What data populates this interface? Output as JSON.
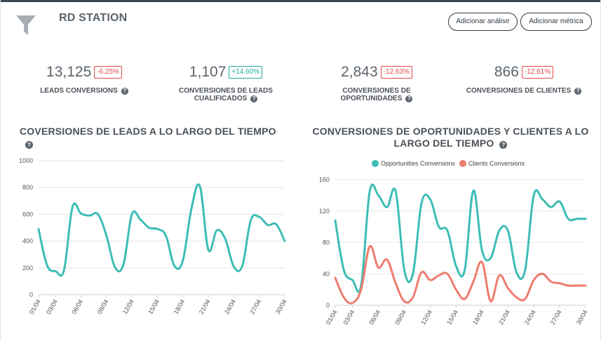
{
  "header": {
    "title": "RD STATION",
    "btn_analise": "Adicionar análise",
    "btn_metrica": "Adicionar métrica"
  },
  "kpis": [
    {
      "value": "13,125",
      "change": "-6.25%",
      "trend": "neg",
      "label": "LEADS CONVERSIONS"
    },
    {
      "value": "1,107",
      "change": "+14.60%",
      "trend": "pos",
      "label_l1": "CONVERSIONES DE LEADS",
      "label_l2": "CUALIFICADOS"
    },
    {
      "value": "2,843",
      "change": "-12.63%",
      "trend": "neg",
      "label_l1": "CONVERSIONES DE",
      "label_l2": "OPORTUNIDADES"
    },
    {
      "value": "866",
      "change": "-12.61%",
      "trend": "neg",
      "label": "CONVERSIONES DE CLIENTES"
    }
  ],
  "help_icon": "?",
  "chart1_title": "COVERSIONES DE LEADS A LO LARGO DEL TIEMPO",
  "chart2_title_l1": "CONVERSIONES DE OPORTUNIDADES Y CLIENTES A LO",
  "chart2_title_l2": "LARGO DEL TIEMPO",
  "colors": {
    "teal": "#3dbdb5",
    "salmon": "#ee7d6f",
    "grid": "#e6e6e6"
  },
  "chart_data": [
    {
      "type": "line",
      "title": "COVERSIONES DE LEADS A LO LARGO DEL TIEMPO",
      "ylim": [
        0,
        1000
      ],
      "yticks": [
        0,
        200,
        400,
        600,
        800,
        1000
      ],
      "x": [
        "01/04",
        "02/04",
        "03/04",
        "04/04",
        "05/04",
        "06/04",
        "07/04",
        "08/04",
        "09/04",
        "10/04",
        "11/04",
        "12/04",
        "13/04",
        "14/04",
        "15/04",
        "16/04",
        "17/04",
        "18/04",
        "19/04",
        "20/04",
        "21/04",
        "22/04",
        "23/04",
        "24/04",
        "25/04",
        "26/04",
        "27/04",
        "28/04",
        "29/04",
        "30/04"
      ],
      "xticks": [
        "01/04",
        "03/04",
        "06/04",
        "09/04",
        "12/04",
        "15/04",
        "18/04",
        "21/04",
        "24/04",
        "27/04",
        "30/04"
      ],
      "series": [
        {
          "name": "Leads Conversions",
          "values": [
            490,
            220,
            175,
            185,
            655,
            605,
            590,
            600,
            440,
            205,
            225,
            600,
            560,
            500,
            490,
            440,
            215,
            255,
            640,
            810,
            335,
            480,
            415,
            210,
            215,
            555,
            580,
            520,
            525,
            400
          ]
        }
      ]
    },
    {
      "type": "line",
      "title": "CONVERSIONES DE OPORTUNIDADES Y CLIENTES A LO LARGO DEL TIEMPO",
      "ylim": [
        0,
        160
      ],
      "yticks": [
        0,
        40,
        80,
        120,
        160
      ],
      "x": [
        "01/04",
        "02/04",
        "03/04",
        "04/04",
        "05/04",
        "06/04",
        "07/04",
        "08/04",
        "09/04",
        "10/04",
        "11/04",
        "12/04",
        "13/04",
        "14/04",
        "15/04",
        "16/04",
        "17/04",
        "18/04",
        "19/04",
        "20/04",
        "21/04",
        "22/04",
        "23/04",
        "24/04",
        "25/04",
        "26/04",
        "27/04",
        "28/04",
        "29/04",
        "30/04"
      ],
      "xticks": [
        "01/04",
        "03/04",
        "06/04",
        "09/04",
        "12/04",
        "15/04",
        "18/04",
        "21/04",
        "24/04",
        "27/04",
        "30/04"
      ],
      "legend": "top",
      "series": [
        {
          "name": "Opportunities Conversions",
          "color": "teal",
          "values": [
            108,
            45,
            32,
            25,
            145,
            140,
            125,
            145,
            45,
            40,
            130,
            135,
            100,
            95,
            50,
            45,
            146,
            70,
            60,
            95,
            95,
            42,
            45,
            140,
            135,
            125,
            132,
            110,
            110,
            110
          ]
        },
        {
          "name": "Clients Conversions",
          "color": "salmon",
          "values": [
            35,
            10,
            3,
            20,
            75,
            48,
            58,
            28,
            5,
            10,
            42,
            32,
            38,
            40,
            20,
            8,
            30,
            55,
            5,
            38,
            22,
            10,
            8,
            32,
            40,
            30,
            28,
            25,
            25,
            25
          ]
        }
      ]
    }
  ]
}
